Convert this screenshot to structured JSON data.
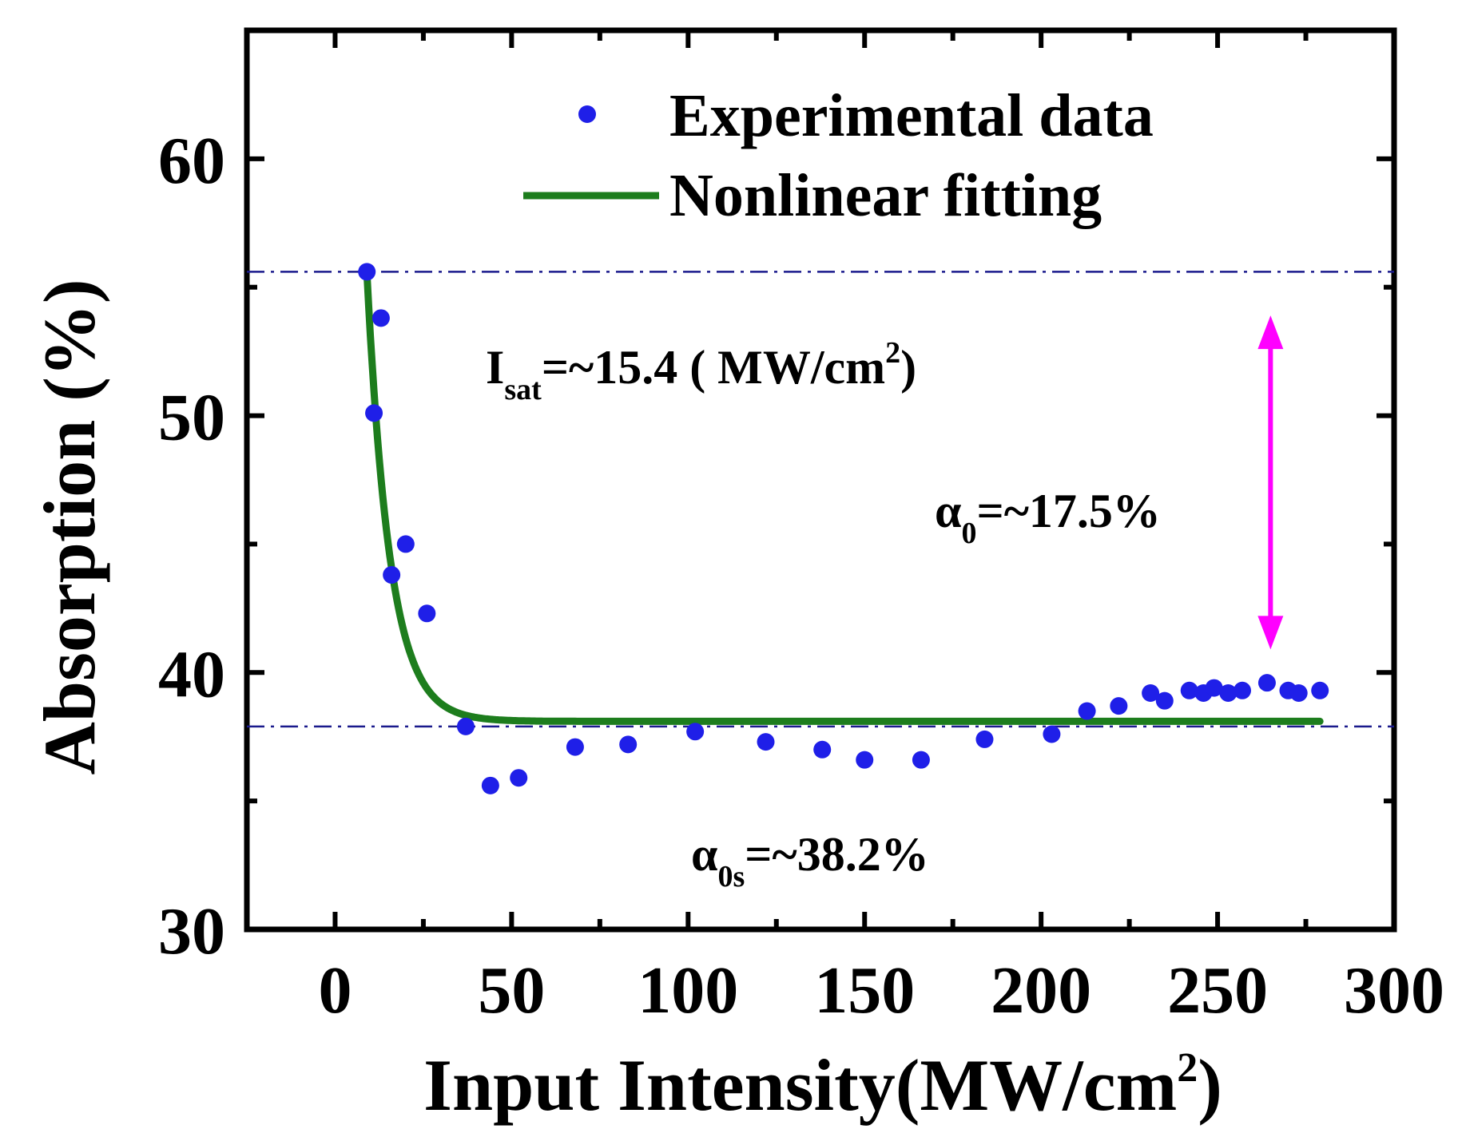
{
  "chart_data": {
    "type": "scatter",
    "title": "",
    "xlabel": "Input Intensity(MW/cm2)",
    "ylabel": "Absorption (%)",
    "xlim": [
      -25,
      300
    ],
    "ylim": [
      30,
      65
    ],
    "xticks": [
      0,
      50,
      100,
      150,
      200,
      250,
      300
    ],
    "yticks": [
      30,
      40,
      50,
      60
    ],
    "grid": false,
    "legend_position": "top-center",
    "series": [
      {
        "name": "Experimental data",
        "kind": "points",
        "color": "#1f1fe8",
        "x": [
          9,
          11,
          13,
          16,
          20,
          26,
          37,
          44,
          52,
          68,
          83,
          102,
          122,
          138,
          150,
          166,
          184,
          203,
          213,
          222,
          231,
          235,
          242,
          246,
          249,
          253,
          257,
          264,
          270,
          273,
          279
        ],
        "y": [
          55.6,
          50.1,
          53.8,
          43.8,
          45.0,
          42.3,
          37.9,
          35.6,
          35.9,
          37.1,
          37.2,
          37.7,
          37.3,
          37.0,
          36.6,
          36.6,
          37.4,
          37.6,
          38.5,
          38.7,
          39.2,
          38.9,
          39.3,
          39.2,
          39.4,
          39.2,
          39.3,
          39.6,
          39.3,
          39.2,
          39.3
        ]
      },
      {
        "name": "Nonlinear fitting",
        "kind": "line",
        "color": "#1d7d1d",
        "x_start": 9,
        "x_end": 279,
        "y_saturated": 38.1,
        "amplitude": 17.5,
        "decay_width": 6.5
      }
    ],
    "reference_lines": [
      {
        "name": "upper-dashdot-line",
        "y": 55.6,
        "color": "#1a1a8c"
      },
      {
        "name": "lower-dashdot-line",
        "y": 37.9,
        "color": "#1a1a8c"
      }
    ],
    "arrow": {
      "x": 265,
      "y_from": 40.9,
      "y_to": 53.9,
      "color": "#ff00ff"
    },
    "annotations": {
      "isat_main": "I",
      "isat_sub": "sat",
      "isat_value": "=~15.4 (   MW/cm",
      "isat_sup": "2",
      "isat_close": ")",
      "alpha0_symbol": "α",
      "alpha0_sub": "0",
      "alpha0_value": "=~17.5%",
      "alpha0s_symbol": "α",
      "alpha0s_sub": "0s",
      "alpha0s_value": "=~38.2%"
    },
    "xlabel_parts": {
      "main": "Input Intensity(MW/cm",
      "sup": "2",
      "close": ")"
    }
  }
}
